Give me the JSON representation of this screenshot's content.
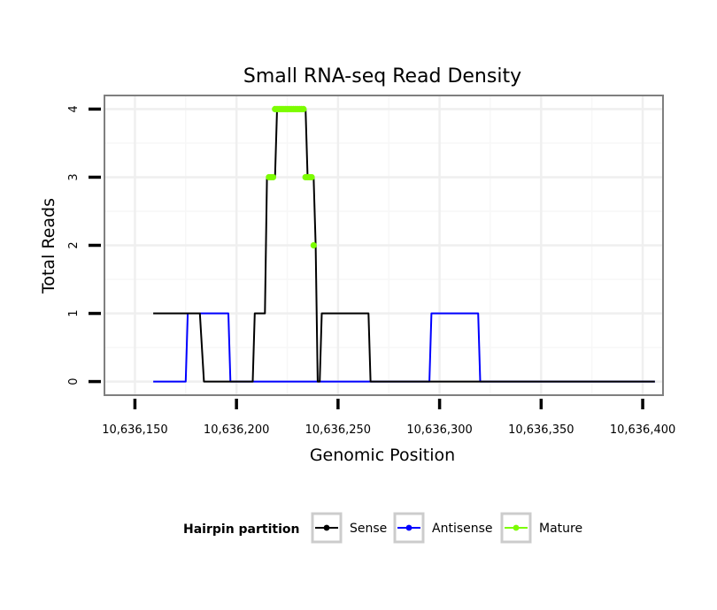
{
  "chart_data": {
    "type": "line",
    "title": "Small RNA-seq Read Density",
    "xlabel": "Genomic Position",
    "ylabel": "Total Reads",
    "xlim": [
      10636135,
      10636410
    ],
    "ylim": [
      -0.2,
      4.2
    ],
    "x_ticks": [
      10636150,
      10636200,
      10636250,
      10636300,
      10636350,
      10636400
    ],
    "x_tick_labels": [
      "10,636,150",
      "10,636,200",
      "10,636,250",
      "10,636,300",
      "10,636,350",
      "10,636,400"
    ],
    "y_ticks": [
      0,
      1,
      2,
      3,
      4
    ],
    "y_tick_labels": [
      "0",
      "1",
      "2",
      "3",
      "4"
    ],
    "grid": true,
    "legend": {
      "position": "bottom",
      "title": "Hairpin partition",
      "entries": [
        "Sense",
        "Antisense",
        "Mature"
      ]
    },
    "series": [
      {
        "name": "Sense",
        "color": "#000000",
        "x": [
          10636159,
          10636182,
          10636184,
          10636208,
          10636209,
          10636214,
          10636215,
          10636219,
          10636220,
          10636234,
          10636235,
          10636238,
          10636239,
          10636240,
          10636241,
          10636242,
          10636265,
          10636266,
          10636406
        ],
        "y": [
          1,
          1,
          0,
          0,
          1,
          1,
          3,
          3,
          4,
          4,
          3,
          3,
          2,
          0,
          0,
          1,
          1,
          0,
          0
        ]
      },
      {
        "name": "Antisense",
        "color": "#0000ff",
        "x": [
          10636159,
          10636175,
          10636176,
          10636196,
          10636197,
          10636295,
          10636296,
          10636319,
          10636320,
          10636406
        ],
        "y": [
          0,
          0,
          1,
          1,
          0,
          0,
          1,
          1,
          0,
          0
        ]
      },
      {
        "name": "Mature",
        "color": "#7cfc00",
        "x": [
          10636216,
          10636217,
          10636218,
          10636219,
          10636220,
          10636221,
          10636222,
          10636223,
          10636224,
          10636225,
          10636226,
          10636227,
          10636228,
          10636229,
          10636230,
          10636231,
          10636232,
          10636233,
          10636234,
          10636235,
          10636236,
          10636237,
          10636238
        ],
        "y": [
          3,
          3,
          3,
          4,
          4,
          4,
          4,
          4,
          4,
          4,
          4,
          4,
          4,
          4,
          4,
          4,
          4,
          4,
          3,
          3,
          3,
          3,
          2
        ]
      }
    ]
  }
}
